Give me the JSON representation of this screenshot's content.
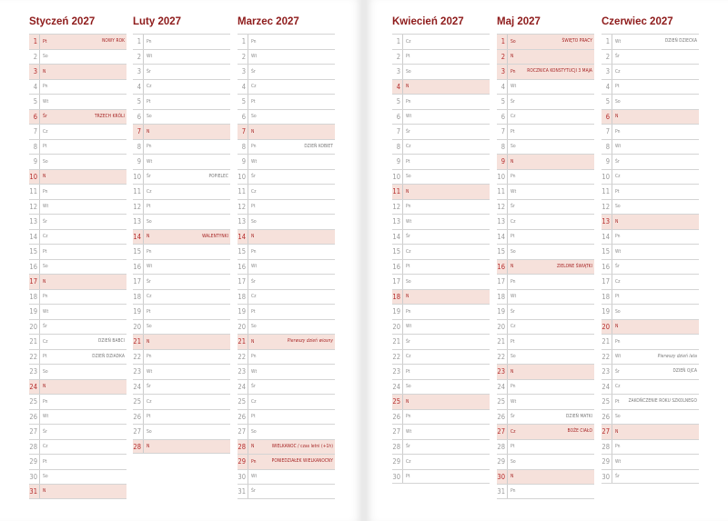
{
  "colors": {
    "accent": "#8e1b1b",
    "highlight": "#f6e1db"
  },
  "months": [
    {
      "title": "Styczeń 2027",
      "page": "left",
      "weekdays": [
        "Pt",
        "So",
        "N",
        "Pn",
        "Wt",
        "Śr",
        "Cz",
        "Pt",
        "So",
        "N",
        "Pn",
        "Wt",
        "Śr",
        "Cz",
        "Pt",
        "So",
        "N",
        "Pn",
        "Wt",
        "Śr",
        "Cz",
        "Pt",
        "So",
        "N",
        "Pn",
        "Wt",
        "Śr",
        "Cz",
        "Pt",
        "So",
        "N"
      ],
      "highlighted": [
        1,
        3,
        6,
        10,
        17,
        24,
        31
      ],
      "notes": {
        "1": {
          "text": "NOWY ROK",
          "style": "red"
        },
        "6": {
          "text": "TRZECH KRÓLI",
          "style": "red"
        },
        "21": {
          "text": "DZIEŃ BABCI",
          "style": "gray"
        },
        "22": {
          "text": "DZIEŃ DZIADKA",
          "style": "gray"
        }
      }
    },
    {
      "title": "Luty 2027",
      "page": "left",
      "weekdays": [
        "Pn",
        "Wt",
        "Śr",
        "Cz",
        "Pt",
        "So",
        "N",
        "Pn",
        "Wt",
        "Śr",
        "Cz",
        "Pt",
        "So",
        "N",
        "Pn",
        "Wt",
        "Śr",
        "Cz",
        "Pt",
        "So",
        "N",
        "Pn",
        "Wt",
        "Śr",
        "Cz",
        "Pt",
        "So",
        "N"
      ],
      "highlighted": [
        7,
        14,
        21,
        28
      ],
      "notes": {
        "10": {
          "text": "POPIELEC",
          "style": "gray"
        },
        "14": {
          "text": "WALENTYNKI",
          "style": "red"
        }
      }
    },
    {
      "title": "Marzec 2027",
      "page": "left",
      "weekdays": [
        "Pn",
        "Wt",
        "Śr",
        "Cz",
        "Pt",
        "So",
        "N",
        "Pn",
        "Wt",
        "Śr",
        "Cz",
        "Pt",
        "So",
        "N",
        "Pn",
        "Wt",
        "Śr",
        "Cz",
        "Pt",
        "So",
        "N",
        "Pn",
        "Wt",
        "Śr",
        "Cz",
        "Pt",
        "So",
        "N",
        "Pn",
        "Wt",
        "Śr"
      ],
      "highlighted": [
        7,
        14,
        21,
        28,
        29
      ],
      "notes": {
        "8": {
          "text": "DZIEŃ KOBIET",
          "style": "gray"
        },
        "21": {
          "text": "Pierwszy dzień wiosny",
          "style": "red it"
        },
        "28": {
          "text": "WIELKANOC / czas letni (+1h)",
          "style": "red"
        },
        "29": {
          "text": "PONIEDZIAŁEK WIELKANOCNY",
          "style": "red"
        }
      }
    },
    {
      "title": "Kwiecień 2027",
      "page": "right",
      "weekdays": [
        "Cz",
        "Pt",
        "So",
        "N",
        "Pn",
        "Wt",
        "Śr",
        "Cz",
        "Pt",
        "So",
        "N",
        "Pn",
        "Wt",
        "Śr",
        "Cz",
        "Pt",
        "So",
        "N",
        "Pn",
        "Wt",
        "Śr",
        "Cz",
        "Pt",
        "So",
        "N",
        "Pn",
        "Wt",
        "Śr",
        "Cz",
        "Pt"
      ],
      "highlighted": [
        4,
        11,
        18,
        25
      ],
      "notes": {}
    },
    {
      "title": "Maj 2027",
      "page": "right",
      "weekdays": [
        "So",
        "N",
        "Pn",
        "Wt",
        "Śr",
        "Cz",
        "Pt",
        "So",
        "N",
        "Pn",
        "Wt",
        "Śr",
        "Cz",
        "Pt",
        "So",
        "N",
        "Pn",
        "Wt",
        "Śr",
        "Cz",
        "Pt",
        "So",
        "N",
        "Pn",
        "Wt",
        "Śr",
        "Cz",
        "Pt",
        "So",
        "N",
        "Pn"
      ],
      "highlighted": [
        1,
        2,
        3,
        9,
        16,
        23,
        27,
        30
      ],
      "notes": {
        "1": {
          "text": "ŚWIĘTO PRACY",
          "style": "red"
        },
        "3": {
          "text": "ROCZNICA KONSTYTUCJI 3 MAJA",
          "style": "red"
        },
        "16": {
          "text": "ZIELONE ŚWIĄTKI",
          "style": "red"
        },
        "26": {
          "text": "DZIEŃ MATKI",
          "style": "gray"
        },
        "27": {
          "text": "BOŻE CIAŁO",
          "style": "red"
        }
      }
    },
    {
      "title": "Czerwiec 2027",
      "page": "right",
      "weekdays": [
        "Wt",
        "Śr",
        "Cz",
        "Pt",
        "So",
        "N",
        "Pn",
        "Wt",
        "Śr",
        "Cz",
        "Pt",
        "So",
        "N",
        "Pn",
        "Wt",
        "Śr",
        "Cz",
        "Pt",
        "So",
        "N",
        "Pn",
        "Wt",
        "Śr",
        "Cz",
        "Pt",
        "So",
        "N",
        "Pn",
        "Wt",
        "Śr"
      ],
      "highlighted": [
        6,
        13,
        20,
        27
      ],
      "notes": {
        "1": {
          "text": "DZIEŃ DZIECKA",
          "style": "gray"
        },
        "22": {
          "text": "Pierwszy dzień lata",
          "style": "gray it"
        },
        "23": {
          "text": "DZIEŃ OJCA",
          "style": "gray"
        },
        "25": {
          "text": "ZAKOŃCZENIE ROKU SZKOLNEGO",
          "style": "gray"
        }
      }
    }
  ]
}
